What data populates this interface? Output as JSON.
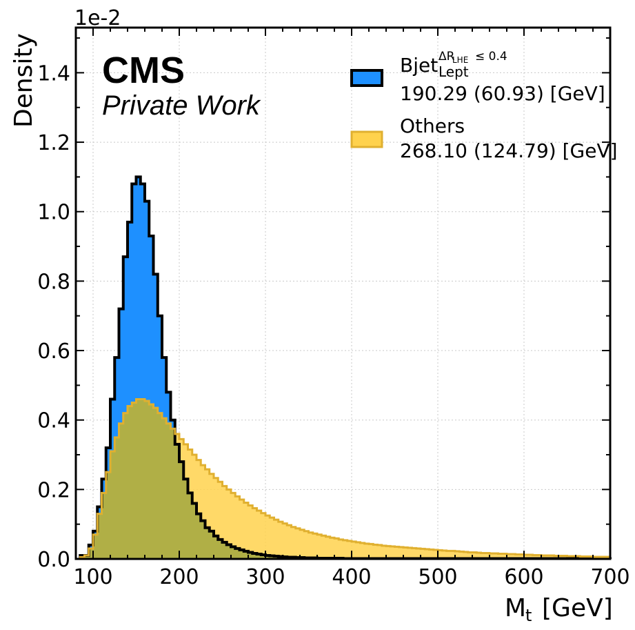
{
  "chart_data": {
    "type": "histogram",
    "xlabel_main": "M",
    "xlabel_sub": "t",
    "xlabel_unit": "[GeV]",
    "ylabel": "Density",
    "y_offset_label": "1e-2",
    "xlim": [
      80,
      700
    ],
    "ylim": [
      0,
      1.53
    ],
    "x_ticks": [
      100,
      200,
      300,
      400,
      500,
      600,
      700
    ],
    "y_ticks": [
      0.0,
      0.2,
      0.4,
      0.6,
      0.8,
      1.0,
      1.2,
      1.4
    ],
    "y_tick_labels": [
      "0.0",
      "0.2",
      "0.4",
      "0.6",
      "0.8",
      "1.0",
      "1.2",
      "1.4"
    ],
    "grid": true,
    "legend_position": "top-right",
    "bin_edges_start": 85,
    "bin_width": 5,
    "series": [
      {
        "legend_main": "Bjet",
        "legend_sup": "ΔR",
        "legend_sup_sub": "LHE",
        "legend_sup_rest": "≤ 0.4",
        "legend_sub": "Lept",
        "legend_stats": "190.29 (60.93) [GeV]",
        "fill": "#1e90ff",
        "edge": "#000000",
        "values": [
          0.01,
          0.01,
          0.04,
          0.08,
          0.15,
          0.23,
          0.32,
          0.46,
          0.58,
          0.72,
          0.87,
          0.97,
          1.08,
          1.1,
          1.08,
          1.03,
          0.93,
          0.82,
          0.7,
          0.58,
          0.48,
          0.4,
          0.33,
          0.28,
          0.23,
          0.19,
          0.16,
          0.13,
          0.11,
          0.09,
          0.08,
          0.066,
          0.056,
          0.048,
          0.041,
          0.035,
          0.03,
          0.026,
          0.022,
          0.019,
          0.016,
          0.014,
          0.012,
          0.01,
          0.009,
          0.008,
          0.007,
          0.006,
          0.005,
          0.005,
          0.004,
          0.004,
          0.003,
          0.003,
          0.003,
          0.002,
          0.002,
          0.002,
          0.002,
          0.002,
          0.002,
          0.001,
          0.001,
          0.001,
          0.001,
          0.001,
          0.001,
          0.001,
          0.001,
          0.001,
          0.001,
          0.001,
          0.001,
          0.001,
          0.001,
          0.001,
          0.001,
          0.001,
          0.001,
          0.001,
          0.001,
          0.001,
          0.001,
          0.001,
          0.001,
          0.001,
          0.001,
          0.001,
          0.001,
          0.001,
          0.001,
          0.001,
          0.001,
          0.001,
          0.001,
          0.001,
          0.001,
          0.001,
          0.001,
          0.001,
          0.001,
          0.001,
          0.001,
          0.001,
          0.001,
          0.001,
          0.001,
          0.001,
          0.001,
          0.001,
          0.001,
          0.001,
          0.001,
          0.001,
          0.001,
          0.001,
          0.001,
          0.001,
          0.001,
          0.001,
          0.001,
          0.001,
          0.001
        ]
      },
      {
        "legend_main": "Others",
        "legend_stats": "268.10 (124.79) [GeV]",
        "fill": "#ffd24d",
        "edge": "#e0b030",
        "values": [
          0.005,
          0.01,
          0.03,
          0.07,
          0.13,
          0.19,
          0.25,
          0.31,
          0.35,
          0.39,
          0.42,
          0.44,
          0.45,
          0.46,
          0.46,
          0.455,
          0.445,
          0.435,
          0.42,
          0.405,
          0.39,
          0.375,
          0.36,
          0.345,
          0.33,
          0.315,
          0.3,
          0.285,
          0.27,
          0.258,
          0.245,
          0.233,
          0.222,
          0.21,
          0.2,
          0.19,
          0.18,
          0.171,
          0.162,
          0.154,
          0.146,
          0.139,
          0.132,
          0.125,
          0.119,
          0.113,
          0.107,
          0.102,
          0.097,
          0.092,
          0.088,
          0.084,
          0.08,
          0.076,
          0.073,
          0.07,
          0.067,
          0.064,
          0.061,
          0.059,
          0.056,
          0.054,
          0.052,
          0.05,
          0.048,
          0.046,
          0.044,
          0.043,
          0.041,
          0.04,
          0.038,
          0.037,
          0.036,
          0.035,
          0.034,
          0.033,
          0.032,
          0.031,
          0.03,
          0.029,
          0.028,
          0.027,
          0.026,
          0.025,
          0.024,
          0.023,
          0.023,
          0.022,
          0.021,
          0.02,
          0.019,
          0.019,
          0.018,
          0.017,
          0.017,
          0.016,
          0.016,
          0.015,
          0.015,
          0.014,
          0.014,
          0.013,
          0.013,
          0.012,
          0.012,
          0.011,
          0.011,
          0.01,
          0.01,
          0.01,
          0.009,
          0.009,
          0.009,
          0.008,
          0.008,
          0.008,
          0.007,
          0.007,
          0.007,
          0.006,
          0.006,
          0.006,
          0.006
        ]
      }
    ]
  },
  "labels": {
    "experiment": "CMS",
    "status": "Private Work"
  }
}
